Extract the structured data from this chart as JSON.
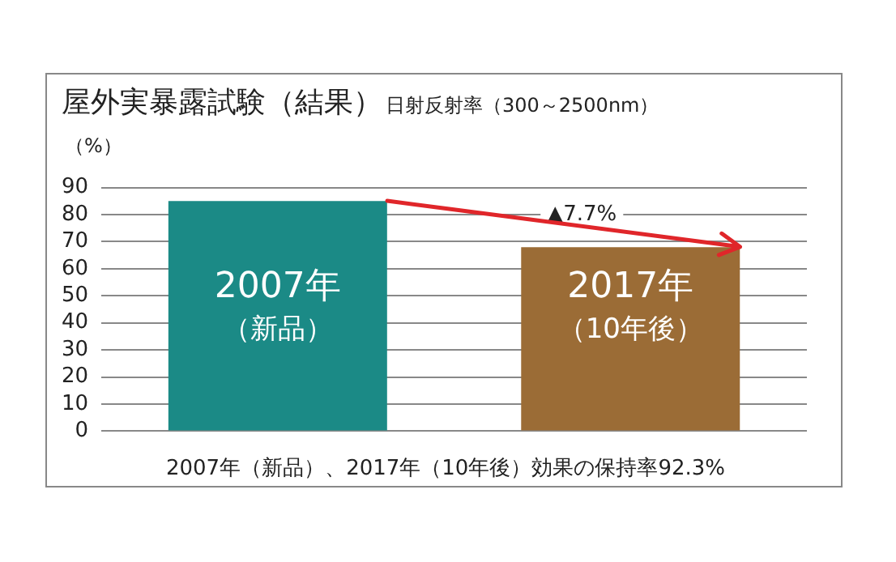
{
  "chart_data": {
    "type": "bar",
    "title": "屋外実暴露試験（結果）",
    "subtitle": "日射反射率（300～2500nm）",
    "ylabel": "（%）",
    "categories": [
      "2007年（新品）",
      "2017年（10年後）"
    ],
    "values": [
      85,
      68
    ],
    "colors": [
      "#1b8a86",
      "#9b6c36"
    ],
    "ylim": [
      0,
      90
    ],
    "yticks": [
      0,
      10,
      20,
      30,
      40,
      50,
      60,
      70,
      80,
      90
    ],
    "grid": "y",
    "legend": false,
    "annotations": [
      "▲7.7%",
      "2007年（新品）、2017年（10年後）効果の保持率92.3%"
    ]
  }
}
